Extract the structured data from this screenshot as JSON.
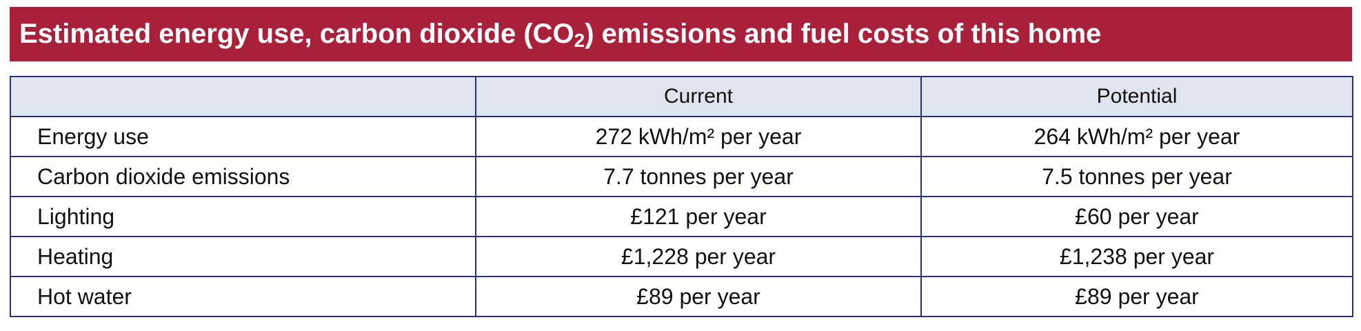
{
  "title": {
    "prefix": "Estimated energy use, carbon dioxide (CO",
    "subscript": "2",
    "suffix": ") emissions and fuel costs of this home"
  },
  "table": {
    "headers": [
      "",
      "Current",
      "Potential"
    ],
    "rows": [
      {
        "label": "Energy use",
        "current": "272 kWh/m² per year",
        "potential": "264 kWh/m² per year"
      },
      {
        "label": "Carbon dioxide emissions",
        "current": "7.7 tonnes per year",
        "potential": "7.5 tonnes per year"
      },
      {
        "label": "Lighting",
        "current": "£121 per year",
        "potential": "£60 per year"
      },
      {
        "label": "Heating",
        "current": "£1,228 per year",
        "potential": "£1,238 per year"
      },
      {
        "label": "Hot water",
        "current": "£89 per year",
        "potential": "£89 per year"
      }
    ]
  },
  "colors": {
    "title_background": "#a8203a",
    "header_background": "#dfe5ee",
    "border": "#2a2f78"
  }
}
